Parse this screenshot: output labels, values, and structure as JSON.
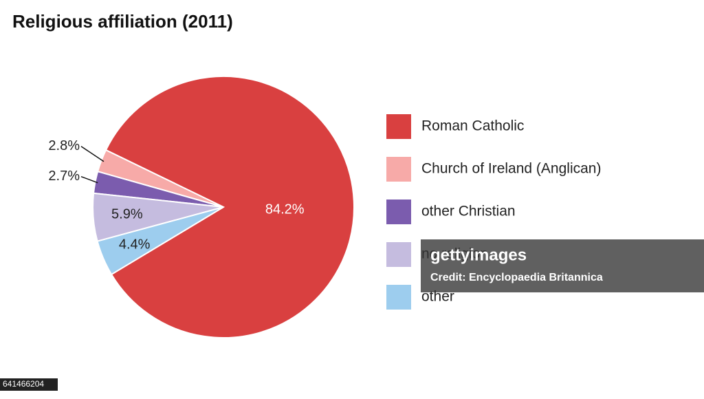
{
  "chart_data": {
    "type": "pie",
    "title": "Religious affiliation (2011)",
    "categories": [
      "Roman Catholic",
      "Church of Ireland (Anglican)",
      "other Christian",
      "no religion",
      "other"
    ],
    "values": [
      84.2,
      2.8,
      2.7,
      5.9,
      4.4
    ],
    "value_labels": [
      "84.2%",
      "2.8%",
      "2.7%",
      "5.9%",
      "4.4%"
    ],
    "colors": [
      "#d94040",
      "#f7aaa8",
      "#7b5cae",
      "#c5bcdf",
      "#9dcdee"
    ]
  },
  "watermark": {
    "brand": "gettyimages",
    "credit": "Credit: Encyclopaedia Britannica",
    "id": "641466204"
  }
}
